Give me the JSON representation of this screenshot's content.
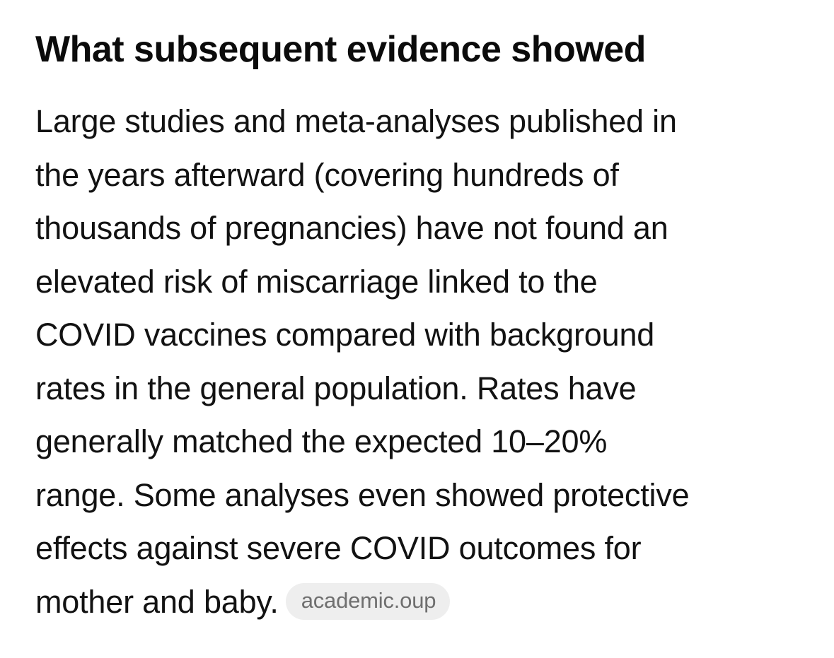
{
  "section": {
    "heading": "What subsequent evidence showed",
    "paragraph_lines": [
      "Large studies and meta-analyses published in",
      "the years afterward (covering hundreds of",
      "thousands of pregnancies) have not found an",
      "elevated risk of miscarriage linked to the",
      "COVID vaccines compared with background",
      "rates in the general population. Rates have",
      "generally matched the expected 10–20%",
      "range. Some analyses even showed protective",
      "effects against severe COVID outcomes for",
      "mother and baby."
    ],
    "citation": {
      "label": "academic.oup"
    }
  }
}
